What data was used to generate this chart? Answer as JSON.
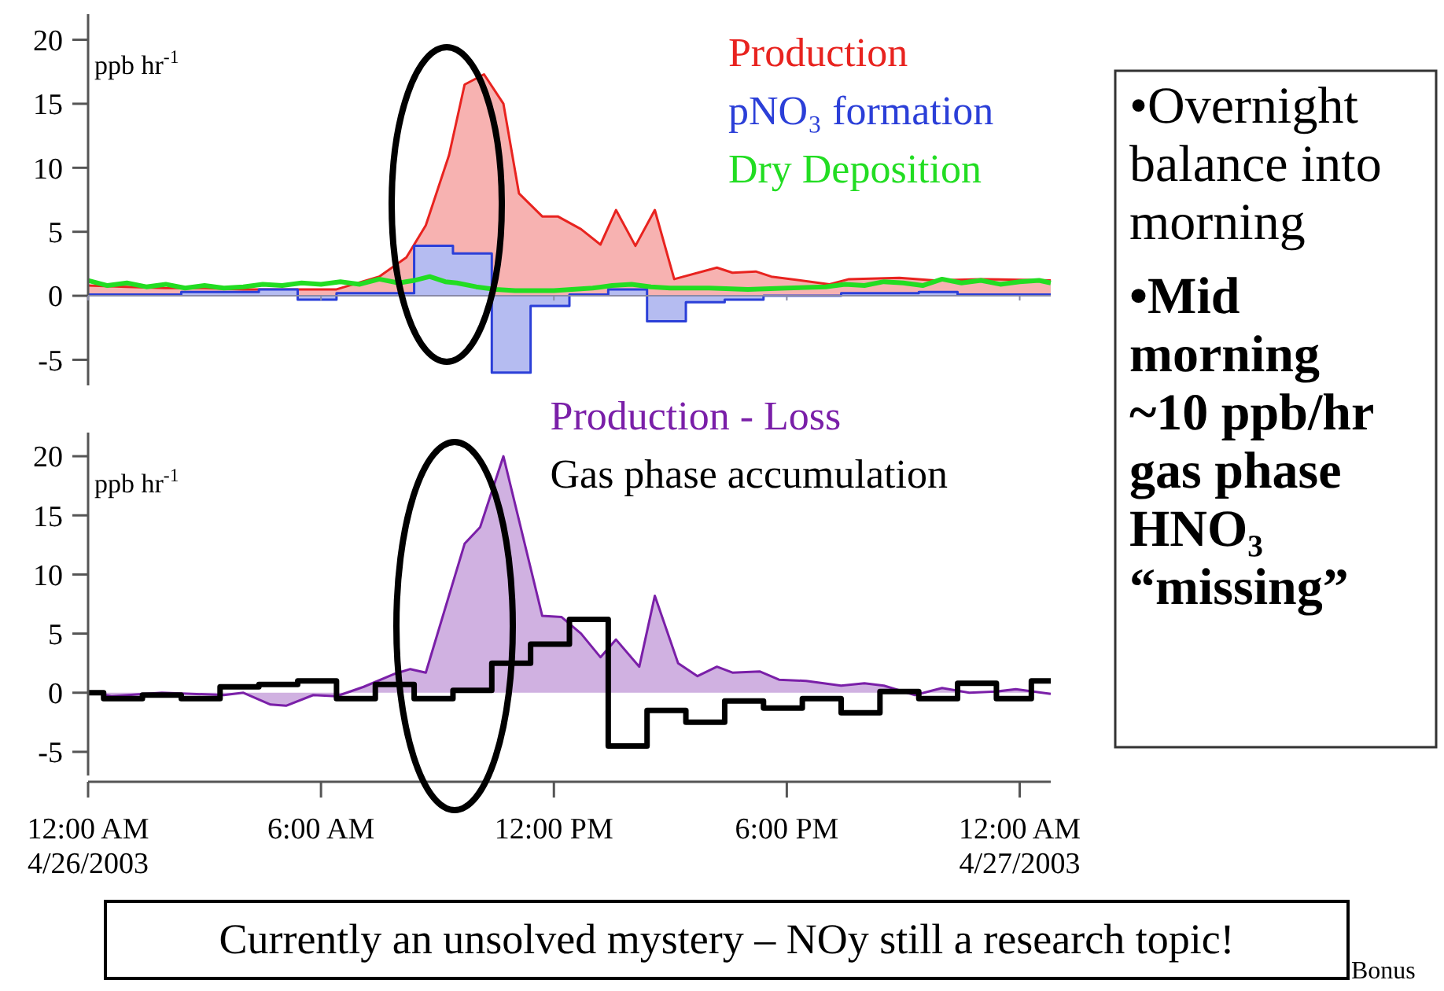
{
  "chart_data": [
    {
      "type": "area",
      "ylabel": "ppb hr$^{-1}$",
      "tick_labels": "y",
      "xlim": [
        0,
        24.8
      ],
      "ylim": [
        -7,
        22
      ],
      "yticks": [
        -5,
        0,
        5,
        10,
        15,
        20
      ],
      "xticks": [
        {
          "value": 0,
          "label": null
        },
        {
          "value": 6,
          "label": null
        },
        {
          "value": 12,
          "label": null
        },
        {
          "value": 18,
          "label": null
        },
        {
          "value": 24,
          "label": null
        }
      ],
      "series": [
        {
          "name": "Production",
          "type": "area",
          "color": "#e8231f",
          "x": [
            0,
            1,
            2,
            3,
            4,
            5,
            6.4,
            7.5,
            8.2,
            8.7,
            9.3,
            9.7,
            10.2,
            10.7,
            11.1,
            11.7,
            12.1,
            12.7,
            13.2,
            13.6,
            14.1,
            14.6,
            15.1,
            16.2,
            16.6,
            17.2,
            17.6,
            19.1,
            19.6,
            20.9,
            21.8,
            23,
            24.8
          ],
          "values": [
            0.8,
            0.7,
            0.6,
            0.6,
            0.5,
            0.5,
            0.5,
            1.5,
            3,
            5.5,
            11,
            16.5,
            17.3,
            15,
            8,
            6.2,
            6.2,
            5.2,
            4,
            6.7,
            3.9,
            6.7,
            1.3,
            2.2,
            1.8,
            1.9,
            1.5,
            0.9,
            1.3,
            1.4,
            1.2,
            1.3,
            1.2
          ]
        },
        {
          "name": "pNO₃ formation",
          "type": "area",
          "color": "#2b3fd8",
          "x": [
            0,
            2.4,
            2.4,
            4.4,
            4.4,
            5.4,
            5.4,
            6.4,
            6.4,
            8.4,
            8.4,
            9.4,
            9.4,
            10.4,
            10.4,
            11.4,
            11.4,
            12.4,
            12.4,
            13.4,
            13.4,
            14.4,
            14.4,
            15.4,
            15.4,
            16.4,
            16.4,
            17.4,
            17.4,
            19.4,
            19.4,
            21.4,
            21.4,
            22.4,
            22.4,
            24.8
          ],
          "values": [
            0.1,
            0.1,
            0.3,
            0.3,
            0.5,
            0.5,
            -0.3,
            -0.3,
            0.2,
            0.2,
            3.9,
            3.9,
            3.3,
            3.3,
            -6,
            -6,
            -0.8,
            -0.8,
            0.1,
            0.1,
            0.5,
            0.5,
            -2,
            -2,
            -0.5,
            -0.5,
            -0.3,
            -0.3,
            0,
            0,
            0.2,
            0.2,
            0.3,
            0.3,
            0.1,
            0.1
          ]
        },
        {
          "name": "Dry Deposition",
          "type": "line",
          "color": "#22dd22",
          "x": [
            0,
            0.5,
            1,
            1.5,
            2,
            2.5,
            3,
            3.5,
            4,
            4.5,
            5,
            5.5,
            6,
            6.5,
            7,
            7.5,
            8,
            8.4,
            8.8,
            9.2,
            9.5,
            10,
            10.5,
            11,
            12,
            13,
            13.5,
            14,
            14.5,
            15,
            16,
            17,
            18,
            19,
            19.5,
            20,
            20.5,
            21,
            21.5,
            22,
            22.5,
            23,
            23.5,
            24,
            24.5,
            24.8
          ],
          "values": [
            1.2,
            0.8,
            1.0,
            0.7,
            0.9,
            0.6,
            0.8,
            0.6,
            0.7,
            0.9,
            0.8,
            1.0,
            0.9,
            1.1,
            0.9,
            1.3,
            1.0,
            1.2,
            1.5,
            1.1,
            1.0,
            0.7,
            0.5,
            0.4,
            0.4,
            0.6,
            0.8,
            0.9,
            0.7,
            0.6,
            0.6,
            0.5,
            0.6,
            0.7,
            0.9,
            0.8,
            1.1,
            1.0,
            0.8,
            1.3,
            1.0,
            1.2,
            0.9,
            1.1,
            1.2,
            1.0
          ]
        }
      ]
    },
    {
      "type": "area",
      "ylabel": "ppb hr$^{-1}$",
      "xlim": [
        0,
        24.8
      ],
      "ylim": [
        -7,
        22
      ],
      "yticks": [
        -5,
        0,
        5,
        10,
        15,
        20
      ],
      "xticks": [
        {
          "value": 0,
          "label": "12:00 AM\n4/26/2003"
        },
        {
          "value": 6,
          "label": "6:00 AM"
        },
        {
          "value": 12,
          "label": "12:00 PM"
        },
        {
          "value": 18,
          "label": "6:00 PM"
        },
        {
          "value": 24,
          "label": "12:00 AM\n4/27/2003"
        }
      ],
      "annotations": [
        "Currently an unsolved mystery – NOy still a research topic!",
        "Bonus"
      ],
      "series": [
        {
          "name": "Production - Loss",
          "type": "area",
          "color": "#7a1fa8",
          "x": [
            0,
            0.6,
            1.9,
            3.5,
            4.0,
            4.7,
            5.1,
            5.8,
            6.4,
            7.1,
            7.9,
            8.3,
            8.7,
            9.7,
            10.1,
            10.7,
            11.7,
            12.2,
            12.7,
            13.2,
            13.6,
            14.2,
            14.6,
            15.2,
            15.7,
            16.2,
            16.6,
            17.3,
            17.8,
            18.5,
            19.4,
            20.0,
            20.5,
            21.3,
            22.0,
            22.7,
            23.4,
            23.9,
            24.8
          ],
          "values": [
            0.1,
            -0.3,
            0,
            -0.2,
            0,
            -1,
            -1.1,
            -0.2,
            -0.3,
            0.5,
            1.6,
            2,
            1.7,
            12.6,
            14,
            20,
            6.5,
            6.4,
            5,
            3,
            4.5,
            2.2,
            8.2,
            2.5,
            1.4,
            2.2,
            1.7,
            1.8,
            1.1,
            1.0,
            0.6,
            0.8,
            0.6,
            -0.2,
            0.4,
            0,
            0.1,
            0.3,
            -0.1
          ]
        },
        {
          "name": "Gas phase accumulation",
          "type": "step",
          "color": "#000000",
          "x": [
            0,
            0.4,
            1.4,
            2.4,
            3.4,
            4.4,
            5.4,
            6.4,
            7.4,
            8.4,
            9.4,
            10.4,
            11.4,
            12.4,
            13.4,
            14.4,
            15.4,
            16.4,
            17.4,
            18.4,
            19.4,
            20.4,
            21.4,
            22.4,
            23.4,
            24.3,
            24.8
          ],
          "values": [
            0,
            -0.5,
            -0.2,
            -0.5,
            0.5,
            0.7,
            1.0,
            -0.5,
            0.7,
            -0.5,
            0.2,
            2.5,
            4.1,
            6.2,
            -4.5,
            -1.5,
            -2.5,
            -0.7,
            -1.3,
            -0.5,
            -1.7,
            0.1,
            -0.5,
            0.8,
            -0.5,
            1.0,
            1.0
          ]
        }
      ]
    },
    {
      "type": "other",
      "annotations": [
        "•Overnight balance into morning",
        "•Mid morning ~10 ppb/hr gas phase HNO₃ “missing”"
      ]
    }
  ]
}
